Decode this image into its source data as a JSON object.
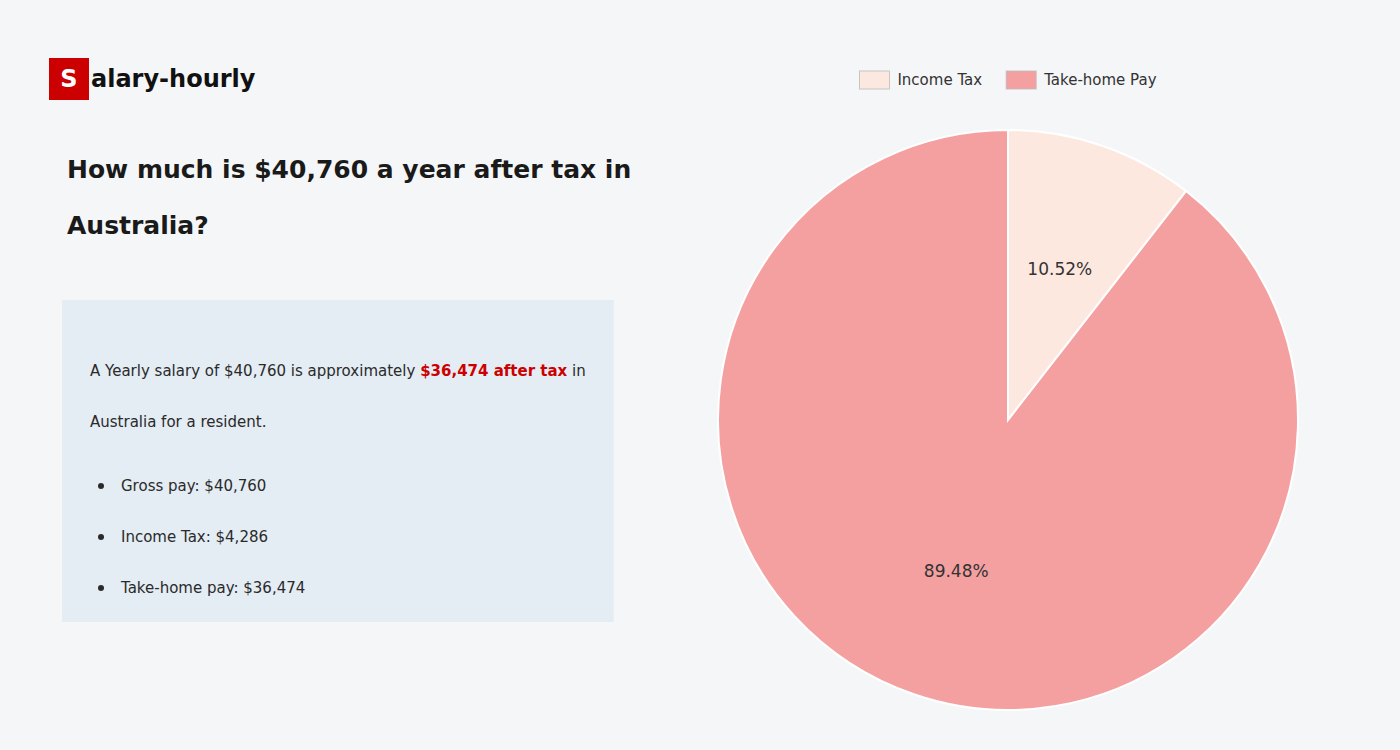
{
  "chart_data": {
    "type": "pie",
    "title": [
      "How much is $40,760 a year after tax in",
      "Australia?"
    ],
    "annotations": [
      {
        "text": "S",
        "color": "#cc0000"
      },
      {
        "text": "alary-hourly"
      },
      {
        "text": "A Yearly salary of $40,760 is approximately "
      },
      {
        "text": "$36,474 after tax",
        "color": "#cc0000"
      },
      {
        "text": " in"
      },
      {
        "text": "Australia for a resident."
      },
      {
        "text": "Gross pay: $40,760"
      },
      {
        "text": "Income Tax: $4,286"
      },
      {
        "text": "Take-home pay: $36,474"
      }
    ],
    "categories": [
      "Income Tax",
      "Take-home Pay"
    ],
    "values": [
      10.52,
      89.48
    ],
    "value_labels": [
      "10.52%",
      "89.48%"
    ],
    "colors": [
      "#fde8e0",
      "#f4a0a0"
    ],
    "data_labels": true,
    "legend": "top"
  }
}
